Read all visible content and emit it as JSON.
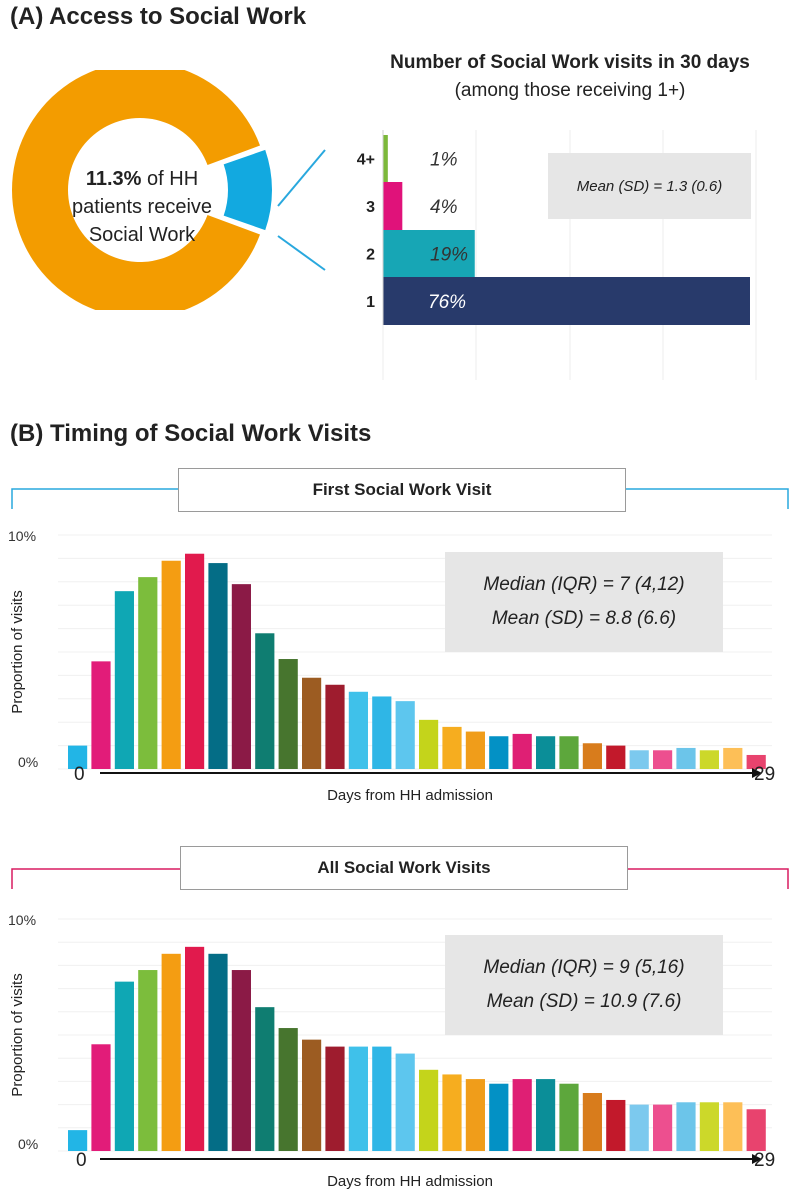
{
  "panelA": {
    "title": "(A) Access to Social Work",
    "donut": {
      "percent_text": "11.3%",
      "line1_rest": " of HH",
      "line2": "patients receive",
      "line3": "Social Work",
      "share": 11.3,
      "main_color": "#f39c00",
      "highlight_color": "#12a9e0"
    },
    "bar_title": "Number of Social Work visits in 30 days",
    "bar_subtitle": "(among those receiving 1+)",
    "stat": "Mean (SD) = 1.3 (0.6)"
  },
  "panelB": {
    "title": "(B) Timing of Social Work Visits",
    "first": {
      "header": "First Social Work Visit",
      "bracket_color": "#29a8de",
      "stat_line1": "Median (IQR) = 7 (4,12)",
      "stat_line2": "Mean (SD) = 8.8 (6.6)"
    },
    "all": {
      "header": "All Social Work Visits",
      "bracket_color": "#d81b60",
      "stat_line1": "Median (IQR) = 9 (5,16)",
      "stat_line2": "Mean (SD) = 10.9 (7.6)"
    }
  },
  "chart_data": [
    {
      "type": "bar",
      "orientation": "horizontal",
      "title": "Number of Social Work visits in 30 days",
      "subtitle": "(among those receiving 1+)",
      "categories": [
        "1",
        "2",
        "3",
        "4+"
      ],
      "values": [
        76,
        19,
        4,
        1
      ],
      "value_labels": [
        "76%",
        "19%",
        "4%",
        "1%"
      ],
      "colors": [
        "#283a6b",
        "#17a6b5",
        "#e0127a",
        "#7cb83a"
      ],
      "xlim": [
        0,
        80
      ]
    },
    {
      "type": "bar",
      "title": "First Social Work Visit",
      "xlabel": "Days from HH admission",
      "ylabel": "Proportion of visits",
      "y_tick_labels": [
        "0%",
        "10%"
      ],
      "x_end_labels": [
        "0",
        "29"
      ],
      "ylim": [
        0,
        10
      ],
      "categories": [
        0,
        1,
        2,
        3,
        4,
        5,
        6,
        7,
        8,
        9,
        10,
        11,
        12,
        13,
        14,
        15,
        16,
        17,
        18,
        19,
        20,
        21,
        22,
        23,
        24,
        25,
        26,
        27,
        28,
        29
      ],
      "values": [
        1.0,
        4.6,
        7.6,
        8.2,
        8.9,
        9.2,
        8.8,
        7.9,
        5.8,
        4.7,
        3.9,
        3.6,
        3.3,
        3.1,
        2.9,
        2.1,
        1.8,
        1.6,
        1.4,
        1.5,
        1.4,
        1.4,
        1.1,
        1.0,
        0.8,
        0.8,
        0.9,
        0.8,
        0.9,
        0.6
      ],
      "colors": [
        "#22b5e6",
        "#e21c79",
        "#0fa7b4",
        "#7cbd3c",
        "#f49d12",
        "#e11a4d",
        "#046d86",
        "#8b1a46",
        "#0f7d71",
        "#47752e",
        "#9c5c22",
        "#9e1c2e",
        "#3fc1ea",
        "#2fb6e6",
        "#5dc6ee",
        "#c4d41b",
        "#f6ad1f",
        "#f09d1a",
        "#0391c5",
        "#df1f74",
        "#0b8e98",
        "#5da73c",
        "#d87c1c",
        "#c2192b",
        "#7cc9ee",
        "#ed4f8f",
        "#6cc5ea",
        "#ccd82a",
        "#fdbf57",
        "#e8436e"
      ]
    },
    {
      "type": "bar",
      "title": "All Social Work Visits",
      "xlabel": "Days from HH admission",
      "ylabel": "Proportion of visits",
      "y_tick_labels": [
        "0%",
        "10%"
      ],
      "x_end_labels": [
        "0",
        "29"
      ],
      "ylim": [
        0,
        10
      ],
      "categories": [
        0,
        1,
        2,
        3,
        4,
        5,
        6,
        7,
        8,
        9,
        10,
        11,
        12,
        13,
        14,
        15,
        16,
        17,
        18,
        19,
        20,
        21,
        22,
        23,
        24,
        25,
        26,
        27,
        28,
        29
      ],
      "values": [
        0.9,
        4.6,
        7.3,
        7.8,
        8.5,
        8.8,
        8.5,
        7.8,
        6.2,
        5.3,
        4.8,
        4.5,
        4.5,
        4.5,
        4.2,
        3.5,
        3.3,
        3.1,
        2.9,
        3.1,
        3.1,
        2.9,
        2.5,
        2.2,
        2.0,
        2.0,
        2.1,
        2.1,
        2.1,
        1.8
      ],
      "colors": [
        "#22b5e6",
        "#e21c79",
        "#0fa7b4",
        "#7cbd3c",
        "#f49d12",
        "#e11a4d",
        "#046d86",
        "#8b1a46",
        "#0f7d71",
        "#47752e",
        "#9c5c22",
        "#9e1c2e",
        "#3fc1ea",
        "#2fb6e6",
        "#5dc6ee",
        "#c4d41b",
        "#f6ad1f",
        "#f09d1a",
        "#0391c5",
        "#df1f74",
        "#0b8e98",
        "#5da73c",
        "#d87c1c",
        "#c2192b",
        "#7cc9ee",
        "#ed4f8f",
        "#6cc5ea",
        "#ccd82a",
        "#fdbf57",
        "#e8436e"
      ]
    }
  ]
}
